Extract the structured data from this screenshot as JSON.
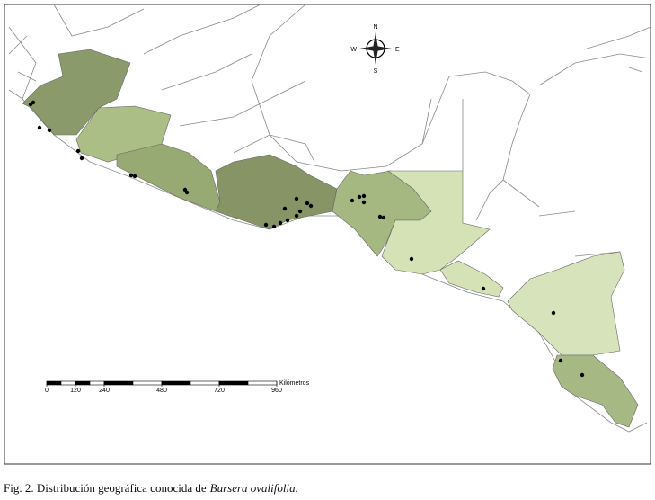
{
  "map": {
    "compass": {
      "n": "N",
      "s": "S",
      "e": "E",
      "w": "W"
    },
    "scale_bar": {
      "ticks": [
        0,
        120,
        240,
        480,
        720,
        960
      ],
      "unit": "Kilómetros"
    }
  },
  "caption": {
    "prefix": "Fig. 2. Distribución geográfica conocida de",
    "species": "Bursera ovalifolia."
  }
}
